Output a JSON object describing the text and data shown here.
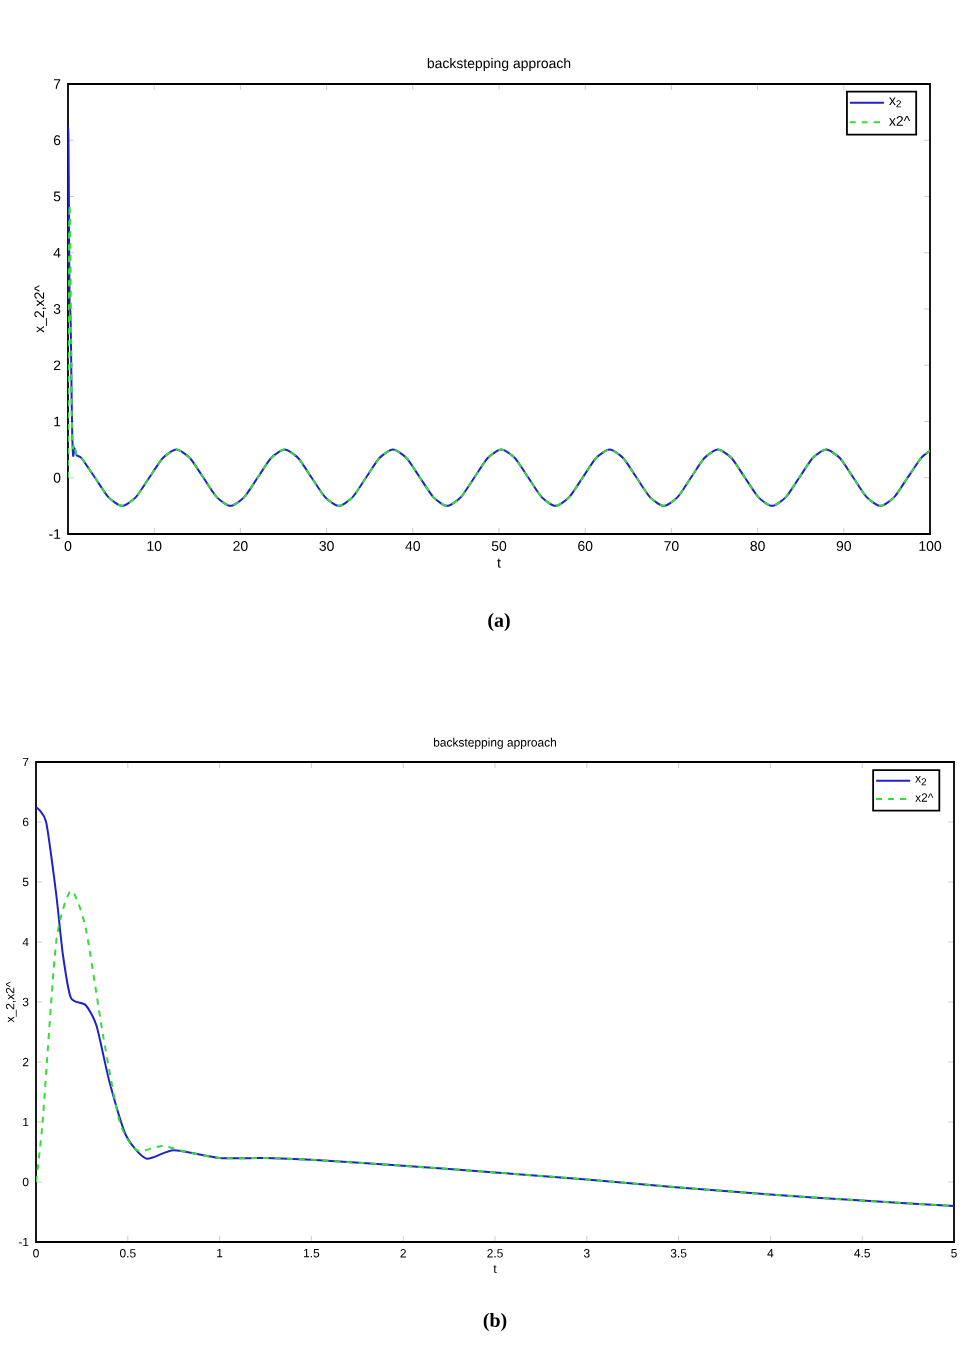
{
  "chart_data": [
    {
      "type": "line",
      "title": "backstepping approach",
      "xlabel": "t",
      "ylabel": "x_2,x2^",
      "annotations": [
        "(a)"
      ],
      "xlim": [
        0,
        100
      ],
      "ylim": [
        -1,
        7
      ],
      "xticks": [
        0,
        10,
        20,
        30,
        40,
        50,
        60,
        70,
        80,
        90,
        100
      ],
      "yticks": [
        -1,
        0,
        1,
        2,
        3,
        4,
        5,
        6,
        7
      ],
      "legend": "top right",
      "series": [
        {
          "name": "x$_{2}$",
          "color": "#2020d0",
          "line_style": "solid",
          "x": [
            0,
            0.055,
            0.11,
            0.146,
            0.19,
            0.27,
            0.33,
            0.4,
            0.49,
            0.6,
            0.75,
            1.0,
            1.57,
            3.14,
            4.71,
            6.28,
            7.85,
            9.42,
            11.0,
            12.57,
            14.14,
            15.71,
            17.28,
            18.85,
            20.42,
            21.99,
            23.56,
            25.13,
            26.7,
            28.27,
            29.85,
            31.42,
            32.99,
            34.56,
            36.13,
            37.7,
            39.27,
            40.84,
            42.41,
            43.98,
            45.55,
            47.12,
            48.69,
            50.27,
            51.84,
            53.41,
            54.98,
            56.55,
            58.12,
            59.69,
            61.26,
            62.83,
            64.4,
            65.97,
            67.54,
            69.12,
            70.69,
            72.26,
            73.83,
            75.4,
            76.97,
            78.54,
            80.11,
            81.68,
            83.25,
            84.82,
            86.39,
            87.96,
            89.54,
            91.11,
            92.68,
            94.25,
            95.82,
            97.39,
            98.96,
            100
          ],
          "values": [
            6.25,
            6.0,
            4.8,
            3.8,
            3.07,
            2.95,
            2.6,
            1.67,
            0.78,
            0.39,
            0.53,
            0.4,
            0.35,
            0,
            -0.35,
            -0.5,
            -0.35,
            0,
            0.35,
            0.5,
            0.35,
            0,
            -0.35,
            -0.5,
            -0.35,
            0,
            0.35,
            0.5,
            0.35,
            0,
            -0.35,
            -0.5,
            -0.35,
            0,
            0.35,
            0.5,
            0.35,
            0,
            -0.35,
            -0.5,
            -0.35,
            0,
            0.35,
            0.5,
            0.35,
            0,
            -0.35,
            -0.5,
            -0.35,
            0,
            0.35,
            0.5,
            0.35,
            0,
            -0.35,
            -0.5,
            -0.35,
            0,
            0.35,
            0.5,
            0.35,
            0,
            -0.35,
            -0.5,
            -0.35,
            0,
            0.35,
            0.5,
            0.35,
            0,
            -0.35,
            -0.5,
            -0.35,
            0,
            0.35,
            0.48
          ]
        },
        {
          "name": "x2^",
          "color": "#33dd33",
          "line_style": "dashed",
          "x": [
            0,
            0.036,
            0.11,
            0.19,
            0.27,
            0.365,
            0.456,
            0.55,
            0.69,
            0.82,
            1.0,
            1.57,
            3.14,
            4.71,
            6.28,
            7.85,
            9.42,
            11.0,
            12.57,
            14.14,
            15.71,
            17.28,
            18.85,
            20.42,
            21.99,
            23.56,
            25.13,
            26.7,
            28.27,
            29.85,
            31.42,
            32.99,
            34.56,
            36.13,
            37.7,
            39.27,
            40.84,
            42.41,
            43.98,
            45.55,
            47.12,
            48.69,
            50.27,
            51.84,
            53.41,
            54.98,
            56.55,
            58.12,
            59.69,
            61.26,
            62.83,
            64.4,
            65.97,
            67.54,
            69.12,
            70.69,
            72.26,
            73.83,
            75.4,
            76.97,
            78.54,
            80.11,
            81.68,
            83.25,
            84.82,
            86.39,
            87.96,
            89.54,
            91.11,
            92.68,
            94.25,
            95.82,
            97.39,
            98.96,
            100
          ],
          "values": [
            0,
            1.0,
            4.0,
            4.85,
            4.24,
            2.45,
            1.0,
            0.53,
            0.6,
            0.5,
            0.4,
            0.35,
            0,
            -0.35,
            -0.5,
            -0.35,
            0,
            0.35,
            0.5,
            0.35,
            0,
            -0.35,
            -0.5,
            -0.35,
            0,
            0.35,
            0.5,
            0.35,
            0,
            -0.35,
            -0.5,
            -0.35,
            0,
            0.35,
            0.5,
            0.35,
            0,
            -0.35,
            -0.5,
            -0.35,
            0,
            0.35,
            0.5,
            0.35,
            0,
            -0.35,
            -0.5,
            -0.35,
            0,
            0.35,
            0.5,
            0.35,
            0,
            -0.35,
            -0.5,
            -0.35,
            0,
            0.35,
            0.5,
            0.35,
            0,
            -0.35,
            -0.5,
            -0.35,
            0,
            0.35,
            0.5,
            0.35,
            0,
            -0.35,
            -0.5,
            -0.35,
            0,
            0.35,
            0.48
          ]
        }
      ]
    },
    {
      "type": "line",
      "title": "backstepping approach",
      "xlabel": "t",
      "ylabel": "x_2,x2^",
      "annotations": [
        "(b)"
      ],
      "xlim": [
        0,
        5
      ],
      "ylim": [
        -1,
        7
      ],
      "xticks": [
        0,
        0.5,
        1,
        1.5,
        2,
        2.5,
        3,
        3.5,
        4,
        4.5,
        5
      ],
      "yticks": [
        -1,
        0,
        1,
        2,
        3,
        4,
        5,
        6,
        7
      ],
      "legend": "top right",
      "series": [
        {
          "name": "x$_{2}$",
          "color": "#2020d0",
          "line_style": "solid",
          "x": [
            0,
            0.055,
            0.11,
            0.146,
            0.19,
            0.27,
            0.33,
            0.4,
            0.49,
            0.6,
            0.75,
            1.0,
            1.25,
            1.5,
            2,
            2.5,
            3,
            3.5,
            4,
            4.5,
            5
          ],
          "values": [
            6.25,
            6.0,
            4.8,
            3.8,
            3.07,
            2.95,
            2.6,
            1.67,
            0.78,
            0.39,
            0.53,
            0.4,
            0.4,
            0.37,
            0.27,
            0.16,
            0.04,
            -0.09,
            -0.21,
            -0.31,
            -0.4
          ]
        },
        {
          "name": "x2^",
          "color": "#33dd33",
          "line_style": "dashed",
          "x": [
            0,
            0.036,
            0.11,
            0.19,
            0.27,
            0.365,
            0.456,
            0.55,
            0.69,
            0.82,
            1.0,
            1.25,
            1.5,
            2,
            2.5,
            3,
            3.5,
            4,
            4.5,
            5
          ],
          "values": [
            0,
            1.0,
            4.0,
            4.85,
            4.24,
            2.45,
            1.0,
            0.53,
            0.6,
            0.5,
            0.4,
            0.4,
            0.37,
            0.27,
            0.16,
            0.04,
            -0.09,
            -0.21,
            -0.31,
            -0.4
          ]
        }
      ]
    }
  ]
}
